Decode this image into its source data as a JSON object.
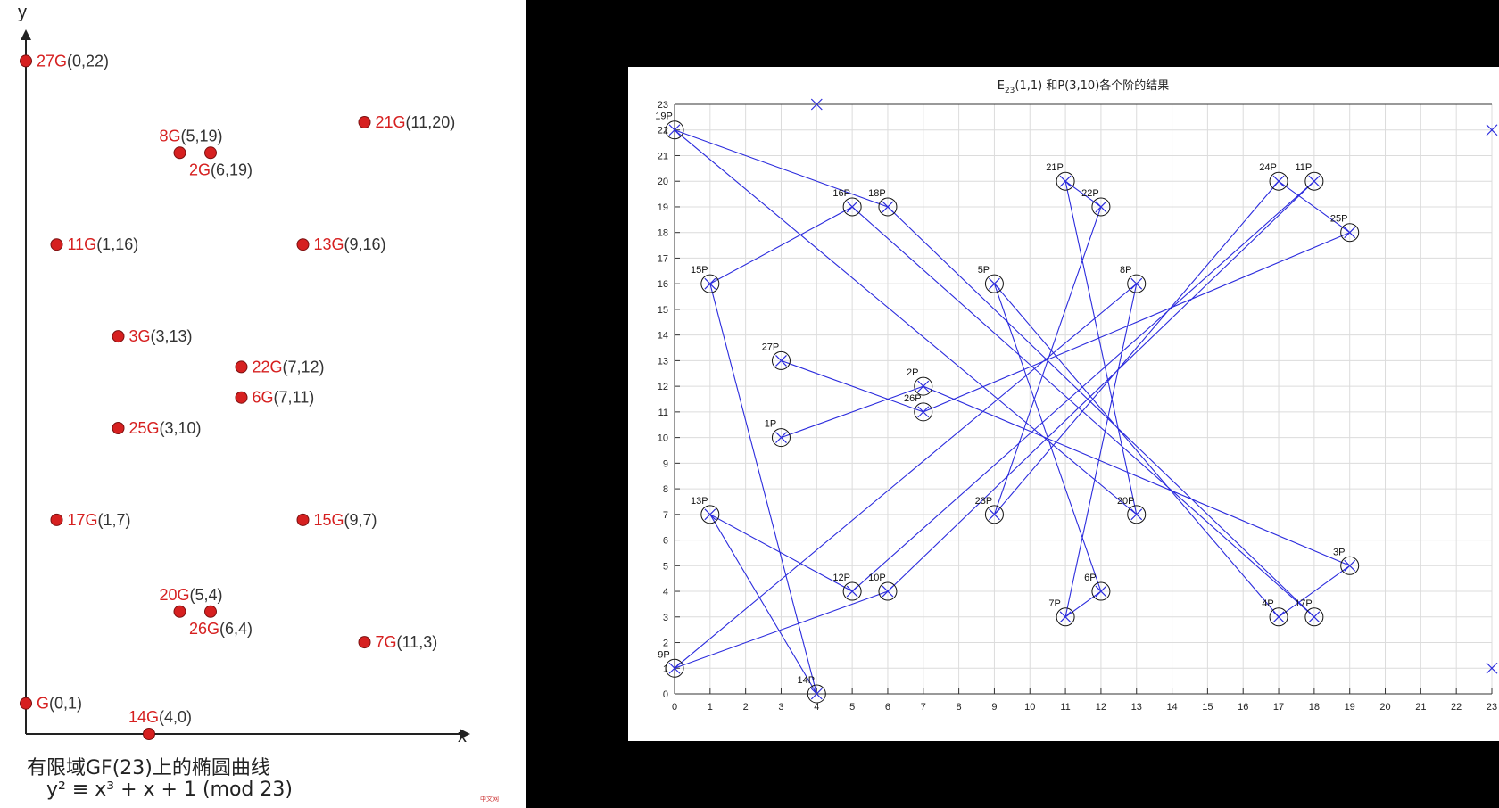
{
  "left": {
    "axis_x_label": "x",
    "axis_y_label": "y",
    "caption_line1": "有限域GF(23)上的椭圆曲线",
    "caption_line2": "y² ≡ x³ + x + 1 (mod 23)",
    "brand_badge": "中文网",
    "point_color": "#d62020",
    "points": [
      {
        "name": "27G",
        "coord": "(0,22)",
        "x": 0,
        "y": 22,
        "label_side": "right"
      },
      {
        "name": "21G",
        "coord": "(11,20)",
        "x": 11,
        "y": 20,
        "label_side": "right"
      },
      {
        "name": "8G",
        "coord": "(5,19)",
        "x": 5,
        "y": 19,
        "label_side": "above"
      },
      {
        "name": "2G",
        "coord": "(6,19)",
        "x": 6,
        "y": 19,
        "label_side": "below"
      },
      {
        "name": "11G",
        "coord": "(1,16)",
        "x": 1,
        "y": 16,
        "label_side": "right"
      },
      {
        "name": "13G",
        "coord": "(9,16)",
        "x": 9,
        "y": 16,
        "label_side": "right"
      },
      {
        "name": "3G",
        "coord": "(3,13)",
        "x": 3,
        "y": 13,
        "label_side": "right"
      },
      {
        "name": "22G",
        "coord": "(7,12)",
        "x": 7,
        "y": 12,
        "label_side": "right"
      },
      {
        "name": "6G",
        "coord": "(7,11)",
        "x": 7,
        "y": 11,
        "label_side": "right"
      },
      {
        "name": "25G",
        "coord": "(3,10)",
        "x": 3,
        "y": 10,
        "label_side": "right"
      },
      {
        "name": "17G",
        "coord": "(1,7)",
        "x": 1,
        "y": 7,
        "label_side": "right"
      },
      {
        "name": "15G",
        "coord": "(9,7)",
        "x": 9,
        "y": 7,
        "label_side": "right"
      },
      {
        "name": "20G",
        "coord": "(5,4)",
        "x": 5,
        "y": 4,
        "label_side": "above"
      },
      {
        "name": "26G",
        "coord": "(6,4)",
        "x": 6,
        "y": 4,
        "label_side": "below"
      },
      {
        "name": "7G",
        "coord": "(11,3)",
        "x": 11,
        "y": 3,
        "label_side": "right"
      },
      {
        "name": "G",
        "coord": "(0,1)",
        "x": 0,
        "y": 1,
        "label_side": "right"
      },
      {
        "name": "14G",
        "coord": "(4,0)",
        "x": 4,
        "y": 0,
        "label_side": "above"
      }
    ]
  },
  "chart_data": {
    "type": "scatter",
    "title": "E₂₃(1,1) 和P(3,10)各个阶的结果",
    "title_main": "E",
    "title_sub": "23",
    "title_rest": "(1,1) 和P(3,10)各个阶的结果",
    "xlim": [
      0,
      23
    ],
    "ylim": [
      0,
      23
    ],
    "xticks": [
      0,
      1,
      2,
      3,
      4,
      5,
      6,
      7,
      8,
      9,
      10,
      11,
      12,
      13,
      14,
      15,
      16,
      17,
      18,
      19,
      20,
      21,
      22,
      23
    ],
    "yticks": [
      0,
      1,
      2,
      3,
      4,
      5,
      6,
      7,
      8,
      9,
      10,
      11,
      12,
      13,
      14,
      15,
      16,
      17,
      18,
      19,
      20,
      21,
      22,
      23
    ],
    "grid": true,
    "line_color": "#2b2bdd",
    "points": [
      {
        "label": "1P",
        "x": 3,
        "y": 10
      },
      {
        "label": "2P",
        "x": 7,
        "y": 12
      },
      {
        "label": "3P",
        "x": 19,
        "y": 5
      },
      {
        "label": "4P",
        "x": 17,
        "y": 3
      },
      {
        "label": "5P",
        "x": 9,
        "y": 16
      },
      {
        "label": "6P",
        "x": 12,
        "y": 4
      },
      {
        "label": "7P",
        "x": 11,
        "y": 3
      },
      {
        "label": "8P",
        "x": 13,
        "y": 16
      },
      {
        "label": "9P",
        "x": 0,
        "y": 1
      },
      {
        "label": "10P",
        "x": 6,
        "y": 4
      },
      {
        "label": "11P",
        "x": 18,
        "y": 20
      },
      {
        "label": "12P",
        "x": 5,
        "y": 4
      },
      {
        "label": "13P",
        "x": 1,
        "y": 7
      },
      {
        "label": "14P",
        "x": 4,
        "y": 0
      },
      {
        "label": "15P",
        "x": 1,
        "y": 16
      },
      {
        "label": "16P",
        "x": 5,
        "y": 19
      },
      {
        "label": "17P",
        "x": 18,
        "y": 3
      },
      {
        "label": "18P",
        "x": 6,
        "y": 19
      },
      {
        "label": "19P",
        "x": 0,
        "y": 22
      },
      {
        "label": "20P",
        "x": 13,
        "y": 7
      },
      {
        "label": "21P",
        "x": 11,
        "y": 20
      },
      {
        "label": "22P",
        "x": 12,
        "y": 19
      },
      {
        "label": "23P",
        "x": 9,
        "y": 7
      },
      {
        "label": "24P",
        "x": 17,
        "y": 20
      },
      {
        "label": "25P",
        "x": 19,
        "y": 18
      },
      {
        "label": "26P",
        "x": 7,
        "y": 11
      },
      {
        "label": "27P",
        "x": 3,
        "y": 13
      }
    ],
    "extra_markers": [
      {
        "x": 4,
        "y": 23
      },
      {
        "x": 23,
        "y": 22
      },
      {
        "x": 23,
        "y": 1
      }
    ]
  }
}
